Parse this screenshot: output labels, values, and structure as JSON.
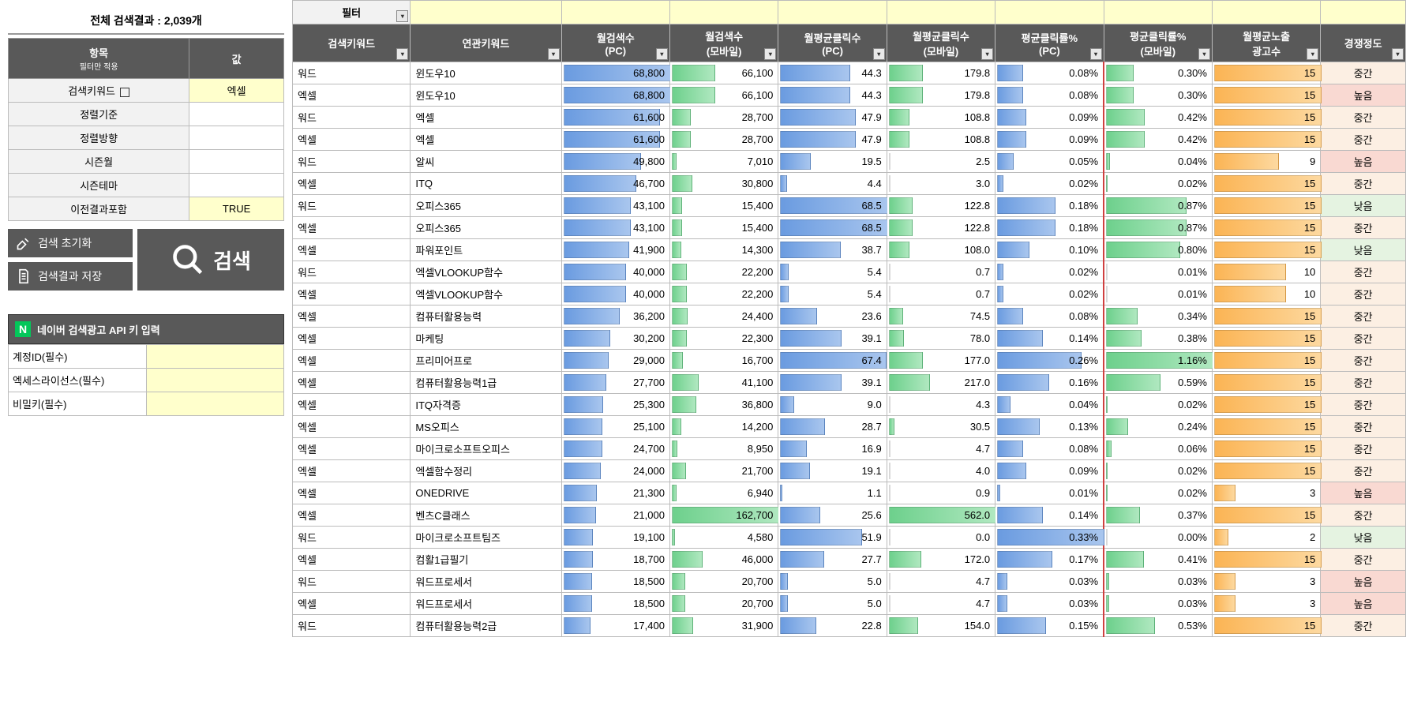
{
  "summary": {
    "title_prefix": "전체 검색결과 : ",
    "count": "2,039",
    "title_suffix": "개"
  },
  "filterHeader": {
    "col1": "항목",
    "col1_sub": "필터만 적용",
    "col2": "값"
  },
  "filters": [
    {
      "label": "검색키워드",
      "value": "엑셀",
      "hasCheckbox": true,
      "yellow": true
    },
    {
      "label": "정렬기준",
      "value": "",
      "yellow": false
    },
    {
      "label": "정렬방향",
      "value": "",
      "yellow": false
    },
    {
      "label": "시즌월",
      "value": "",
      "yellow": false
    },
    {
      "label": "시즌테마",
      "value": "",
      "yellow": false
    },
    {
      "label": "이전결과포함",
      "value": "TRUE",
      "yellow": true
    }
  ],
  "buttons": {
    "reset": "검색 초기화",
    "save": "검색결과 저장",
    "search": "검색"
  },
  "api": {
    "header": "네이버 검색광고 API 키 입력",
    "rows": [
      {
        "label": "계정ID(필수)"
      },
      {
        "label": "엑세스라이선스(필수)"
      },
      {
        "label": "비밀키(필수)"
      }
    ]
  },
  "gridHeader": {
    "filterLabel": "필터",
    "cols": [
      "검색키워드",
      "연관키워드",
      "월검색수\n(PC)",
      "월검색수\n(모바일)",
      "월평균클릭수\n(PC)",
      "월평균클릭수\n(모바일)",
      "평균클릭률%\n(PC)",
      "평균클릭률%\n(모바일)",
      "월평균노출\n광고수",
      "경쟁정도"
    ]
  },
  "compMap": {
    "중간": "comp-mid",
    "높음": "comp-high",
    "낮음": "comp-low"
  },
  "max": {
    "pc": 68800,
    "mob": 162700,
    "clkPc": 68.5,
    "clkMob": 562,
    "ctrPc": 0.33,
    "ctrMob": 1.16,
    "ads": 15
  },
  "rows": [
    {
      "k1": "워드",
      "k2": "윈도우10",
      "pc": "68,800",
      "pcV": 68800,
      "mob": "66,100",
      "mobV": 66100,
      "cp": "44.3",
      "cpV": 44.3,
      "cm": "179.8",
      "cmV": 179.8,
      "rp": "0.08%",
      "rpV": 0.08,
      "rm": "0.30%",
      "rmV": 0.3,
      "ads": "15",
      "adsV": 15,
      "comp": "중간"
    },
    {
      "k1": "엑셀",
      "k2": "윈도우10",
      "pc": "68,800",
      "pcV": 68800,
      "mob": "66,100",
      "mobV": 66100,
      "cp": "44.3",
      "cpV": 44.3,
      "cm": "179.8",
      "cmV": 179.8,
      "rp": "0.08%",
      "rpV": 0.08,
      "rm": "0.30%",
      "rmV": 0.3,
      "ads": "15",
      "adsV": 15,
      "comp": "높음"
    },
    {
      "k1": "워드",
      "k2": "엑셀",
      "pc": "61,600",
      "pcV": 61600,
      "mob": "28,700",
      "mobV": 28700,
      "cp": "47.9",
      "cpV": 47.9,
      "cm": "108.8",
      "cmV": 108.8,
      "rp": "0.09%",
      "rpV": 0.09,
      "rm": "0.42%",
      "rmV": 0.42,
      "ads": "15",
      "adsV": 15,
      "comp": "중간"
    },
    {
      "k1": "엑셀",
      "k2": "엑셀",
      "pc": "61,600",
      "pcV": 61600,
      "mob": "28,700",
      "mobV": 28700,
      "cp": "47.9",
      "cpV": 47.9,
      "cm": "108.8",
      "cmV": 108.8,
      "rp": "0.09%",
      "rpV": 0.09,
      "rm": "0.42%",
      "rmV": 0.42,
      "ads": "15",
      "adsV": 15,
      "comp": "중간"
    },
    {
      "k1": "워드",
      "k2": "알씨",
      "pc": "49,800",
      "pcV": 49800,
      "mob": "7,010",
      "mobV": 7010,
      "cp": "19.5",
      "cpV": 19.5,
      "cm": "2.5",
      "cmV": 2.5,
      "rp": "0.05%",
      "rpV": 0.05,
      "rm": "0.04%",
      "rmV": 0.04,
      "ads": "9",
      "adsV": 9,
      "comp": "높음"
    },
    {
      "k1": "엑셀",
      "k2": "ITQ",
      "pc": "46,700",
      "pcV": 46700,
      "mob": "30,800",
      "mobV": 30800,
      "cp": "4.4",
      "cpV": 4.4,
      "cm": "3.0",
      "cmV": 3.0,
      "rp": "0.02%",
      "rpV": 0.02,
      "rm": "0.02%",
      "rmV": 0.02,
      "ads": "15",
      "adsV": 15,
      "comp": "중간"
    },
    {
      "k1": "워드",
      "k2": "오피스365",
      "pc": "43,100",
      "pcV": 43100,
      "mob": "15,400",
      "mobV": 15400,
      "cp": "68.5",
      "cpV": 68.5,
      "cm": "122.8",
      "cmV": 122.8,
      "rp": "0.18%",
      "rpV": 0.18,
      "rm": "0.87%",
      "rmV": 0.87,
      "ads": "15",
      "adsV": 15,
      "comp": "낮음"
    },
    {
      "k1": "엑셀",
      "k2": "오피스365",
      "pc": "43,100",
      "pcV": 43100,
      "mob": "15,400",
      "mobV": 15400,
      "cp": "68.5",
      "cpV": 68.5,
      "cm": "122.8",
      "cmV": 122.8,
      "rp": "0.18%",
      "rpV": 0.18,
      "rm": "0.87%",
      "rmV": 0.87,
      "ads": "15",
      "adsV": 15,
      "comp": "중간"
    },
    {
      "k1": "엑셀",
      "k2": "파워포인트",
      "pc": "41,900",
      "pcV": 41900,
      "mob": "14,300",
      "mobV": 14300,
      "cp": "38.7",
      "cpV": 38.7,
      "cm": "108.0",
      "cmV": 108.0,
      "rp": "0.10%",
      "rpV": 0.1,
      "rm": "0.80%",
      "rmV": 0.8,
      "ads": "15",
      "adsV": 15,
      "comp": "낮음"
    },
    {
      "k1": "워드",
      "k2": "엑셀VLOOKUP함수",
      "pc": "40,000",
      "pcV": 40000,
      "mob": "22,200",
      "mobV": 22200,
      "cp": "5.4",
      "cpV": 5.4,
      "cm": "0.7",
      "cmV": 0.7,
      "rp": "0.02%",
      "rpV": 0.02,
      "rm": "0.01%",
      "rmV": 0.01,
      "ads": "10",
      "adsV": 10,
      "comp": "중간"
    },
    {
      "k1": "엑셀",
      "k2": "엑셀VLOOKUP함수",
      "pc": "40,000",
      "pcV": 40000,
      "mob": "22,200",
      "mobV": 22200,
      "cp": "5.4",
      "cpV": 5.4,
      "cm": "0.7",
      "cmV": 0.7,
      "rp": "0.02%",
      "rpV": 0.02,
      "rm": "0.01%",
      "rmV": 0.01,
      "ads": "10",
      "adsV": 10,
      "comp": "중간"
    },
    {
      "k1": "엑셀",
      "k2": "컴퓨터활용능력",
      "pc": "36,200",
      "pcV": 36200,
      "mob": "24,400",
      "mobV": 24400,
      "cp": "23.6",
      "cpV": 23.6,
      "cm": "74.5",
      "cmV": 74.5,
      "rp": "0.08%",
      "rpV": 0.08,
      "rm": "0.34%",
      "rmV": 0.34,
      "ads": "15",
      "adsV": 15,
      "comp": "중간"
    },
    {
      "k1": "엑셀",
      "k2": "마케팅",
      "pc": "30,200",
      "pcV": 30200,
      "mob": "22,300",
      "mobV": 22300,
      "cp": "39.1",
      "cpV": 39.1,
      "cm": "78.0",
      "cmV": 78.0,
      "rp": "0.14%",
      "rpV": 0.14,
      "rm": "0.38%",
      "rmV": 0.38,
      "ads": "15",
      "adsV": 15,
      "comp": "중간"
    },
    {
      "k1": "엑셀",
      "k2": "프리미어프로",
      "pc": "29,000",
      "pcV": 29000,
      "mob": "16,700",
      "mobV": 16700,
      "cp": "67.4",
      "cpV": 67.4,
      "cm": "177.0",
      "cmV": 177.0,
      "rp": "0.26%",
      "rpV": 0.26,
      "rm": "1.16%",
      "rmV": 1.16,
      "ads": "15",
      "adsV": 15,
      "comp": "중간"
    },
    {
      "k1": "엑셀",
      "k2": "컴퓨터활용능력1급",
      "pc": "27,700",
      "pcV": 27700,
      "mob": "41,100",
      "mobV": 41100,
      "cp": "39.1",
      "cpV": 39.1,
      "cm": "217.0",
      "cmV": 217.0,
      "rp": "0.16%",
      "rpV": 0.16,
      "rm": "0.59%",
      "rmV": 0.59,
      "ads": "15",
      "adsV": 15,
      "comp": "중간"
    },
    {
      "k1": "엑셀",
      "k2": "ITQ자격증",
      "pc": "25,300",
      "pcV": 25300,
      "mob": "36,800",
      "mobV": 36800,
      "cp": "9.0",
      "cpV": 9.0,
      "cm": "4.3",
      "cmV": 4.3,
      "rp": "0.04%",
      "rpV": 0.04,
      "rm": "0.02%",
      "rmV": 0.02,
      "ads": "15",
      "adsV": 15,
      "comp": "중간"
    },
    {
      "k1": "엑셀",
      "k2": "MS오피스",
      "pc": "25,100",
      "pcV": 25100,
      "mob": "14,200",
      "mobV": 14200,
      "cp": "28.7",
      "cpV": 28.7,
      "cm": "30.5",
      "cmV": 30.5,
      "rp": "0.13%",
      "rpV": 0.13,
      "rm": "0.24%",
      "rmV": 0.24,
      "ads": "15",
      "adsV": 15,
      "comp": "중간"
    },
    {
      "k1": "엑셀",
      "k2": "마이크로소프트오피스",
      "pc": "24,700",
      "pcV": 24700,
      "mob": "8,950",
      "mobV": 8950,
      "cp": "16.9",
      "cpV": 16.9,
      "cm": "4.7",
      "cmV": 4.7,
      "rp": "0.08%",
      "rpV": 0.08,
      "rm": "0.06%",
      "rmV": 0.06,
      "ads": "15",
      "adsV": 15,
      "comp": "중간"
    },
    {
      "k1": "엑셀",
      "k2": "엑셀함수정리",
      "pc": "24,000",
      "pcV": 24000,
      "mob": "21,700",
      "mobV": 21700,
      "cp": "19.1",
      "cpV": 19.1,
      "cm": "4.0",
      "cmV": 4.0,
      "rp": "0.09%",
      "rpV": 0.09,
      "rm": "0.02%",
      "rmV": 0.02,
      "ads": "15",
      "adsV": 15,
      "comp": "중간"
    },
    {
      "k1": "엑셀",
      "k2": "ONEDRIVE",
      "pc": "21,300",
      "pcV": 21300,
      "mob": "6,940",
      "mobV": 6940,
      "cp": "1.1",
      "cpV": 1.1,
      "cm": "0.9",
      "cmV": 0.9,
      "rp": "0.01%",
      "rpV": 0.01,
      "rm": "0.02%",
      "rmV": 0.02,
      "ads": "3",
      "adsV": 3,
      "comp": "높음"
    },
    {
      "k1": "엑셀",
      "k2": "벤츠C클래스",
      "pc": "21,000",
      "pcV": 21000,
      "mob": "162,700",
      "mobV": 162700,
      "cp": "25.6",
      "cpV": 25.6,
      "cm": "562.0",
      "cmV": 562.0,
      "rp": "0.14%",
      "rpV": 0.14,
      "rm": "0.37%",
      "rmV": 0.37,
      "ads": "15",
      "adsV": 15,
      "comp": "중간"
    },
    {
      "k1": "워드",
      "k2": "마이크로소프트팀즈",
      "pc": "19,100",
      "pcV": 19100,
      "mob": "4,580",
      "mobV": 4580,
      "cp": "51.9",
      "cpV": 51.9,
      "cm": "0.0",
      "cmV": 0.0,
      "rp": "0.33%",
      "rpV": 0.33,
      "rm": "0.00%",
      "rmV": 0.0,
      "ads": "2",
      "adsV": 2,
      "comp": "낮음"
    },
    {
      "k1": "엑셀",
      "k2": "컴활1급필기",
      "pc": "18,700",
      "pcV": 18700,
      "mob": "46,000",
      "mobV": 46000,
      "cp": "27.7",
      "cpV": 27.7,
      "cm": "172.0",
      "cmV": 172.0,
      "rp": "0.17%",
      "rpV": 0.17,
      "rm": "0.41%",
      "rmV": 0.41,
      "ads": "15",
      "adsV": 15,
      "comp": "중간"
    },
    {
      "k1": "워드",
      "k2": "워드프로세서",
      "pc": "18,500",
      "pcV": 18500,
      "mob": "20,700",
      "mobV": 20700,
      "cp": "5.0",
      "cpV": 5.0,
      "cm": "4.7",
      "cmV": 4.7,
      "rp": "0.03%",
      "rpV": 0.03,
      "rm": "0.03%",
      "rmV": 0.03,
      "ads": "3",
      "adsV": 3,
      "comp": "높음"
    },
    {
      "k1": "엑셀",
      "k2": "워드프로세서",
      "pc": "18,500",
      "pcV": 18500,
      "mob": "20,700",
      "mobV": 20700,
      "cp": "5.0",
      "cpV": 5.0,
      "cm": "4.7",
      "cmV": 4.7,
      "rp": "0.03%",
      "rpV": 0.03,
      "rm": "0.03%",
      "rmV": 0.03,
      "ads": "3",
      "adsV": 3,
      "comp": "높음"
    },
    {
      "k1": "워드",
      "k2": "컴퓨터활용능력2급",
      "pc": "17,400",
      "pcV": 17400,
      "mob": "31,900",
      "mobV": 31900,
      "cp": "22.8",
      "cpV": 22.8,
      "cm": "154.0",
      "cmV": 154.0,
      "rp": "0.15%",
      "rpV": 0.15,
      "rm": "0.53%",
      "rmV": 0.53,
      "ads": "15",
      "adsV": 15,
      "comp": "중간"
    }
  ]
}
